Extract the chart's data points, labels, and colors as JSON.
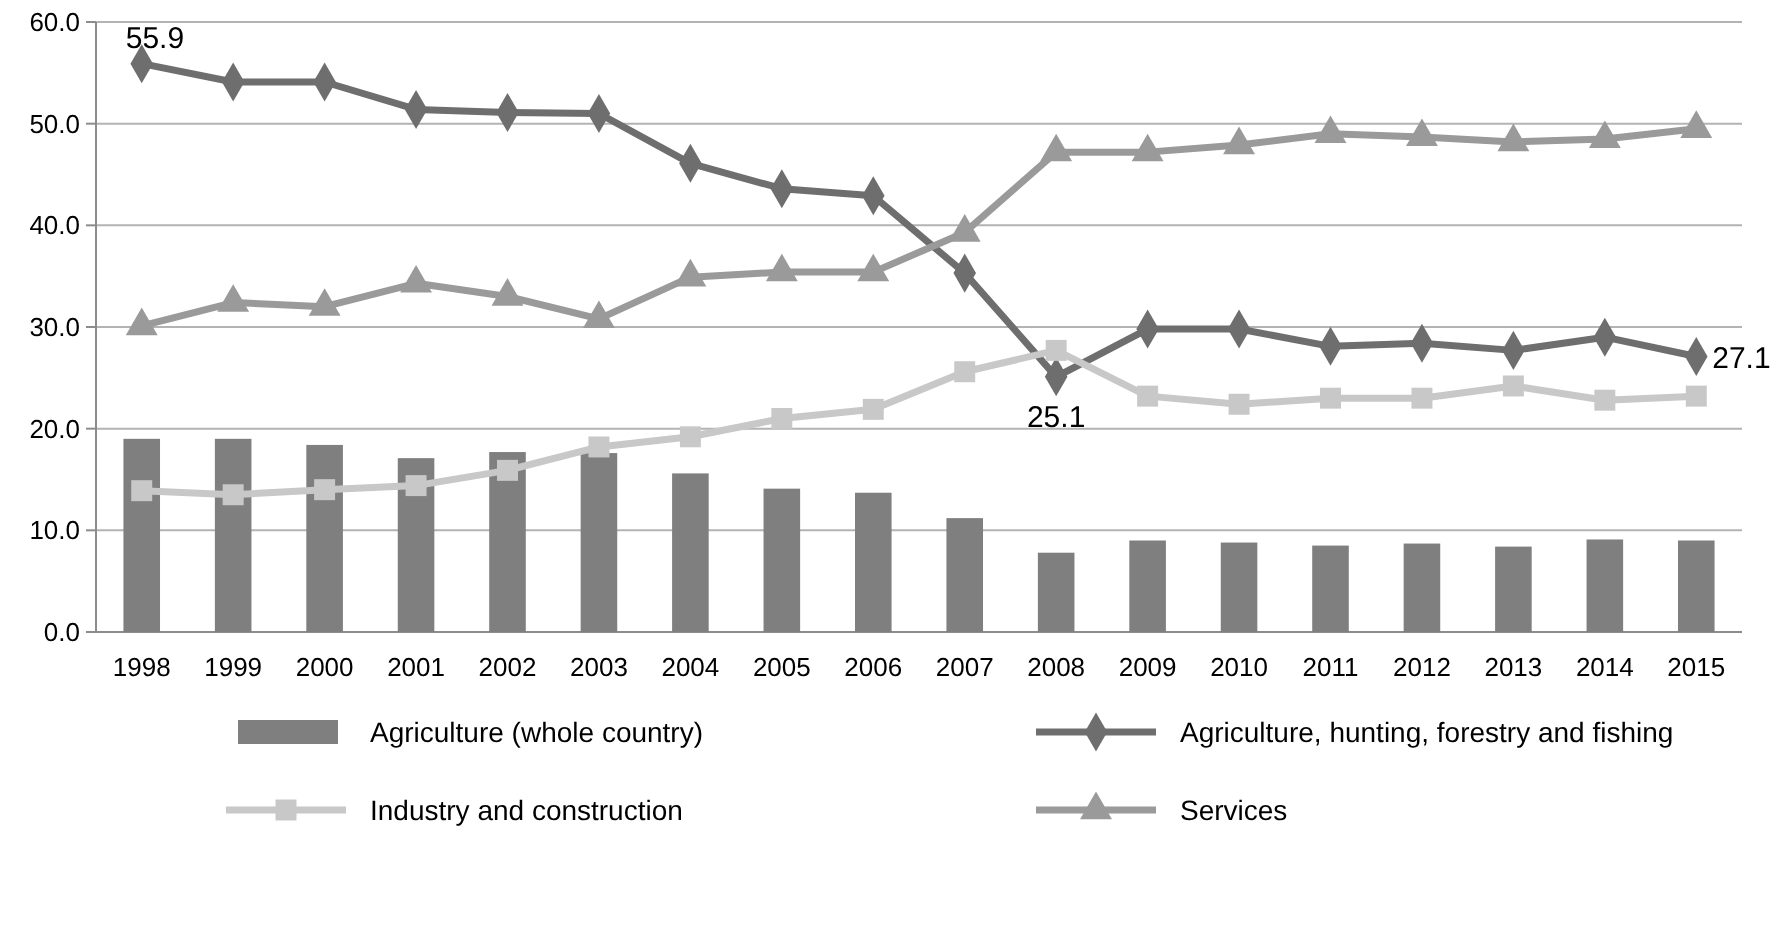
{
  "chart_data": {
    "type": "bar",
    "categories": [
      "1998",
      "1999",
      "2000",
      "2001",
      "2002",
      "2003",
      "2004",
      "2005",
      "2006",
      "2007",
      "2008",
      "2009",
      "2010",
      "2011",
      "2012",
      "2013",
      "2014",
      "2015"
    ],
    "series": [
      {
        "name": "Agriculture (whole country)",
        "color": "#7f7f7f",
        "values": [
          19.0,
          19.0,
          18.4,
          17.1,
          17.7,
          17.6,
          15.6,
          14.1,
          13.7,
          11.2,
          7.8,
          9.0,
          8.8,
          8.5,
          8.7,
          8.4,
          9.1,
          9.0
        ]
      },
      {
        "name": "Agriculture, hunting, forestry and fishing",
        "type": "line",
        "marker": "diamond",
        "color": "#6e6e6e",
        "values": [
          55.9,
          54.1,
          54.1,
          51.4,
          51.1,
          51.0,
          46.1,
          43.6,
          42.9,
          35.3,
          25.1,
          29.8,
          29.8,
          28.1,
          28.4,
          27.7,
          29.0,
          27.1
        ],
        "value_labels": [
          "55.9",
          null,
          null,
          null,
          null,
          null,
          null,
          null,
          null,
          null,
          "25.1",
          null,
          null,
          null,
          null,
          null,
          null,
          "27.1"
        ]
      },
      {
        "name": "Industry and construction",
        "type": "line",
        "marker": "square",
        "color": "#c8c8c8",
        "values": [
          13.9,
          13.5,
          14.0,
          14.4,
          15.9,
          18.2,
          19.2,
          21.0,
          21.9,
          25.6,
          27.7,
          23.2,
          22.4,
          23.0,
          23.0,
          24.2,
          22.8,
          23.2
        ]
      },
      {
        "name": "Services",
        "type": "line",
        "marker": "triangle",
        "color": "#9a9a9a",
        "values": [
          30.1,
          32.4,
          32.0,
          34.3,
          33.0,
          30.8,
          34.9,
          35.4,
          35.4,
          39.3,
          47.2,
          47.2,
          47.9,
          49.0,
          48.7,
          48.2,
          48.5,
          49.5
        ]
      }
    ],
    "ylim": [
      0,
      60
    ],
    "yticks": [
      {
        "value": 0,
        "label": "0.0"
      },
      {
        "value": 10,
        "label": "10.0"
      },
      {
        "value": 20,
        "label": "20.0"
      },
      {
        "value": 30,
        "label": "30.0"
      },
      {
        "value": 40,
        "label": "40.0"
      },
      {
        "value": 50,
        "label": "50.0"
      },
      {
        "value": 60,
        "label": "60.0"
      }
    ],
    "grid": "y",
    "legend": "bottom"
  }
}
